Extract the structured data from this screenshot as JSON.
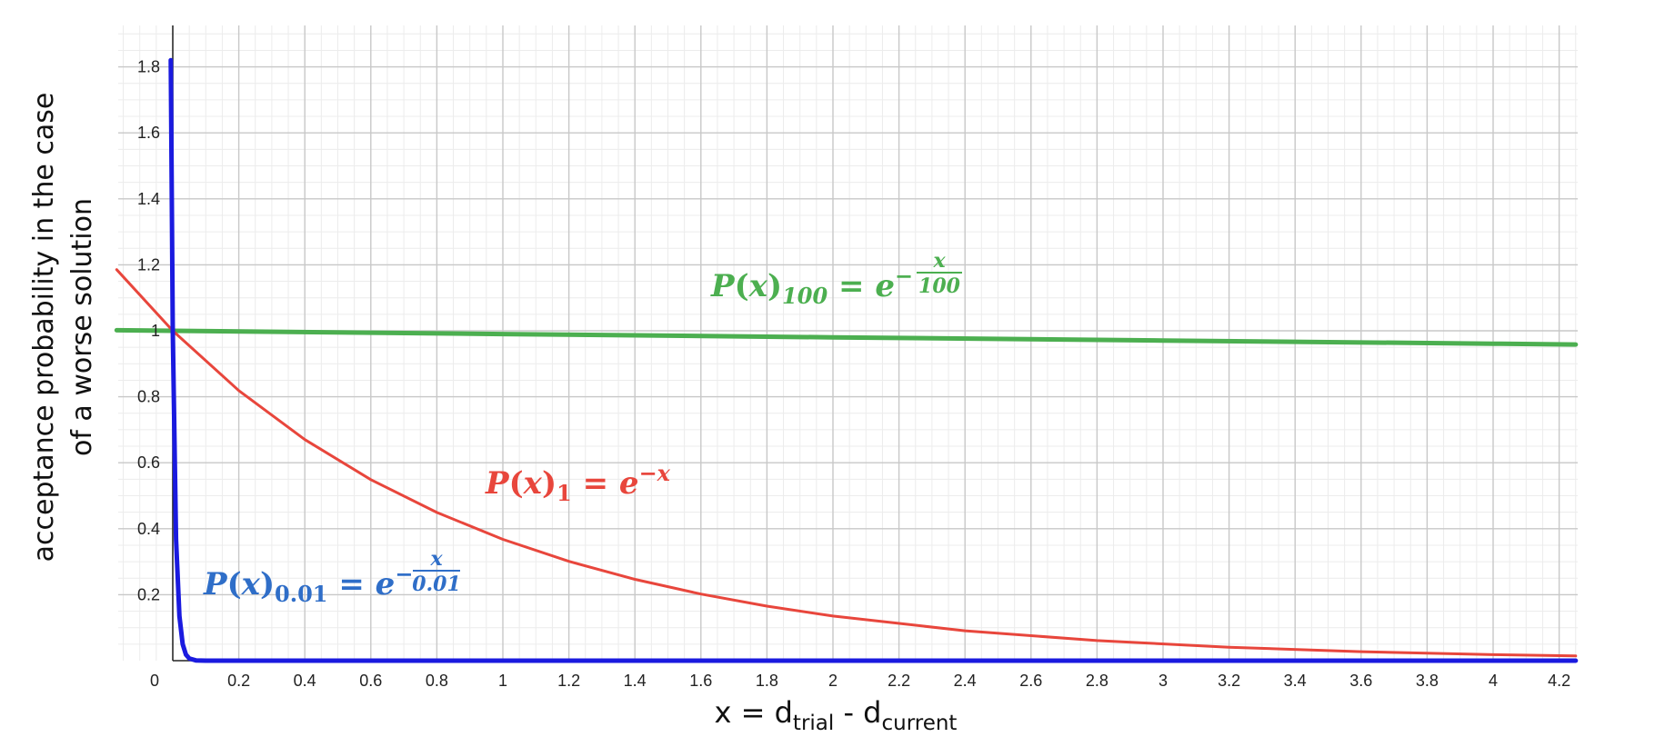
{
  "chart_data": {
    "type": "line",
    "title": "",
    "xlabel": {
      "main": "x = d",
      "sub1": "trial",
      "mid": " - d",
      "sub2": "current"
    },
    "ylabel": [
      "acceptance probability in the case",
      "of a worse solution"
    ],
    "xlim": [
      0,
      4.25
    ],
    "ylim": [
      0,
      1.93
    ],
    "x_ticks": [
      "0",
      "0.2",
      "0.4",
      "0.6",
      "0.8",
      "1",
      "1.2",
      "1.4",
      "1.6",
      "1.8",
      "2",
      "2.2",
      "2.4",
      "2.6",
      "2.8",
      "3",
      "3.2",
      "3.4",
      "3.6",
      "3.8",
      "4",
      "4.2"
    ],
    "y_ticks": [
      "0.2",
      "0.4",
      "0.6",
      "0.8",
      "1",
      "1.2",
      "1.4",
      "1.6",
      "1.8"
    ],
    "grid": true,
    "curve_offset_x": 0,
    "series": [
      {
        "name": "P(x)100 = e^(-x/100)",
        "color": "#4caf50",
        "temperature": 100,
        "points": [
          [
            -0.17,
            1.0017
          ],
          [
            0,
            1.0
          ],
          [
            1,
            0.99
          ],
          [
            2,
            0.9802
          ],
          [
            3,
            0.9704
          ],
          [
            4,
            0.9608
          ],
          [
            4.25,
            0.9584
          ]
        ],
        "label": {
          "P": "P",
          "x": "x",
          "sub": "100",
          "eq": " = ",
          "e": "e",
          "minus": "−",
          "num": "x",
          "den": "100"
        }
      },
      {
        "name": "P(x)1 = e^(-x)",
        "color": "#e8463c",
        "temperature": 1,
        "points": [
          [
            -0.17,
            1.1853
          ],
          [
            0,
            1.0
          ],
          [
            0.2,
            0.8187
          ],
          [
            0.4,
            0.6703
          ],
          [
            0.6,
            0.5488
          ],
          [
            0.8,
            0.4493
          ],
          [
            1,
            0.3679
          ],
          [
            1.2,
            0.3012
          ],
          [
            1.4,
            0.2466
          ],
          [
            1.6,
            0.2019
          ],
          [
            1.8,
            0.1653
          ],
          [
            2,
            0.1353
          ],
          [
            2.4,
            0.0907
          ],
          [
            2.8,
            0.0608
          ],
          [
            3.2,
            0.0408
          ],
          [
            3.6,
            0.0273
          ],
          [
            4,
            0.0183
          ],
          [
            4.25,
            0.0143
          ]
        ],
        "label": {
          "P": "P",
          "x": "x",
          "sub": "1",
          "eq": " = ",
          "e": "e",
          "sup": "−x"
        }
      },
      {
        "name": "P(x)0.01 = e^(-x/0.01)",
        "color": "#1a1adf",
        "label_color": "#2f6ec8",
        "temperature": 0.01,
        "points": [
          [
            -0.006,
            1.82
          ],
          [
            0,
            1.0
          ],
          [
            0.01,
            0.3679
          ],
          [
            0.02,
            0.1353
          ],
          [
            0.03,
            0.0498
          ],
          [
            0.04,
            0.0183
          ],
          [
            0.05,
            0.0067
          ],
          [
            0.07,
            0.0009
          ],
          [
            0.1,
            0.0
          ],
          [
            4.25,
            0.0
          ]
        ],
        "label": {
          "P": "P",
          "x": "x",
          "sub": "0.01",
          "eq": " = ",
          "e": "e",
          "minus": "−",
          "num": "x",
          "den": "0.01"
        }
      }
    ]
  }
}
